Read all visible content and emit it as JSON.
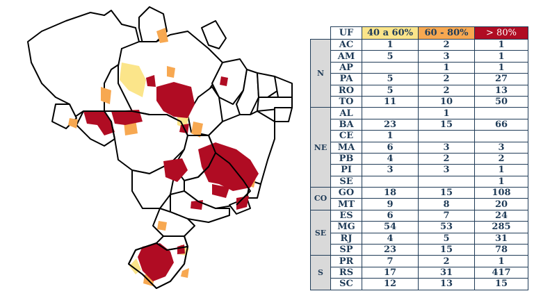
{
  "legend_colors": {
    "c40_60": "#fbe58a",
    "c60_80": "#f7a851",
    "c80": "#b00c23",
    "header_text": "#1f3b57",
    "region_bg": "#d9d9d9"
  },
  "table": {
    "headers": [
      "UF",
      "40 a 60%",
      "60 - 80%",
      "> 80%"
    ],
    "regions": [
      {
        "name": "N",
        "rows": [
          {
            "uf": "AC",
            "c1": "1",
            "c2": "2",
            "c3": "1"
          },
          {
            "uf": "AM",
            "c1": "5",
            "c2": "3",
            "c3": "1"
          },
          {
            "uf": "AP",
            "c1": "",
            "c2": "1",
            "c3": "1"
          },
          {
            "uf": "PA",
            "c1": "5",
            "c2": "2",
            "c3": "27"
          },
          {
            "uf": "RO",
            "c1": "5",
            "c2": "2",
            "c3": "13"
          },
          {
            "uf": "TO",
            "c1": "11",
            "c2": "10",
            "c3": "50"
          }
        ]
      },
      {
        "name": "NE",
        "rows": [
          {
            "uf": "AL",
            "c1": "",
            "c2": "1",
            "c3": ""
          },
          {
            "uf": "BA",
            "c1": "23",
            "c2": "15",
            "c3": "66"
          },
          {
            "uf": "CE",
            "c1": "1",
            "c2": "",
            "c3": ""
          },
          {
            "uf": "MA",
            "c1": "6",
            "c2": "3",
            "c3": "3"
          },
          {
            "uf": "PB",
            "c1": "4",
            "c2": "2",
            "c3": "2"
          },
          {
            "uf": "PI",
            "c1": "3",
            "c2": "3",
            "c3": "1"
          },
          {
            "uf": "SE",
            "c1": "",
            "c2": "",
            "c3": "1"
          }
        ]
      },
      {
        "name": "CO",
        "rows": [
          {
            "uf": "GO",
            "c1": "18",
            "c2": "15",
            "c3": "108"
          },
          {
            "uf": "MT",
            "c1": "9",
            "c2": "8",
            "c3": "20"
          }
        ]
      },
      {
        "name": "SE",
        "rows": [
          {
            "uf": "ES",
            "c1": "6",
            "c2": "7",
            "c3": "24"
          },
          {
            "uf": "MG",
            "c1": "54",
            "c2": "53",
            "c3": "285"
          },
          {
            "uf": "RJ",
            "c1": "4",
            "c2": "5",
            "c3": "31"
          },
          {
            "uf": "SP",
            "c1": "23",
            "c2": "15",
            "c3": "78"
          }
        ]
      },
      {
        "name": "S",
        "rows": [
          {
            "uf": "PR",
            "c1": "7",
            "c2": "2",
            "c3": "1"
          },
          {
            "uf": "RS",
            "c1": "17",
            "c2": "31",
            "c3": "417"
          },
          {
            "uf": "SC",
            "c1": "12",
            "c2": "13",
            "c3": "15"
          }
        ]
      }
    ]
  }
}
